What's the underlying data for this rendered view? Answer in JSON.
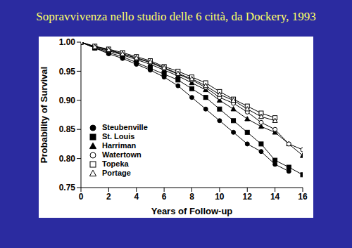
{
  "chart_data": {
    "type": "line",
    "title": "Sopravvivenza nello studio delle 6 città, da Dockery, 1993",
    "x_label": "Years of Follow-up",
    "y_label": "Probability of Survival",
    "x": [
      0,
      1,
      2,
      3,
      4,
      5,
      6,
      7,
      8,
      9,
      10,
      11,
      12,
      13,
      14,
      15,
      16
    ],
    "xlim": [
      0,
      16
    ],
    "xticks": [
      0,
      2,
      4,
      6,
      8,
      10,
      12,
      14,
      16
    ],
    "ylim": [
      0.75,
      1.0
    ],
    "yticks": [
      0.75,
      {
        "value": 0.8,
        "label": "0.80"
      },
      0.85,
      {
        "value": 0.9,
        "label": "0.90"
      },
      0.95,
      {
        "value": 1.0,
        "label": "1.00"
      }
    ],
    "legend": "lower left",
    "grid": false,
    "series": [
      {
        "name": "Steubenville",
        "color": "#000000",
        "marker": "circle",
        "values": [
          1.0,
          0.99,
          0.98,
          0.972,
          0.962,
          0.952,
          0.94,
          0.925,
          0.905,
          0.885,
          0.865,
          0.845,
          0.825,
          0.812,
          0.79,
          0.778,
          null
        ]
      },
      {
        "name": "St. Louis",
        "color": "#000000",
        "marker": "square",
        "values": [
          1.0,
          0.99,
          0.982,
          0.975,
          0.965,
          0.955,
          0.945,
          0.935,
          0.92,
          0.905,
          0.885,
          0.865,
          0.845,
          0.825,
          0.797,
          0.785,
          0.772
        ]
      },
      {
        "name": "Harriman",
        "color": "#000000",
        "marker": "triangle",
        "values": [
          1.0,
          0.99,
          0.985,
          0.978,
          0.97,
          0.962,
          0.952,
          0.942,
          0.93,
          0.918,
          0.9,
          0.885,
          0.868,
          0.855,
          0.845,
          0.825,
          0.805
        ]
      },
      {
        "name": "Watertown",
        "color": "#000000",
        "marker": "open_circle",
        "values": [
          1.0,
          0.992,
          0.986,
          0.98,
          0.972,
          0.965,
          0.955,
          0.945,
          0.935,
          0.922,
          0.905,
          0.895,
          0.88,
          0.862,
          0.85,
          0.825,
          0.815
        ]
      },
      {
        "name": "Topeka",
        "color": "#000000",
        "marker": "open_square",
        "values": [
          1.0,
          0.993,
          0.988,
          0.982,
          0.975,
          0.968,
          0.958,
          0.95,
          0.94,
          0.93,
          0.915,
          0.902,
          0.89,
          0.878,
          0.87,
          null,
          null
        ]
      },
      {
        "name": "Portage",
        "color": "#000000",
        "marker": "open_triangle",
        "values": [
          1.0,
          0.992,
          0.987,
          0.98,
          0.973,
          0.966,
          0.956,
          0.946,
          0.937,
          0.925,
          0.91,
          0.9,
          0.885,
          0.872,
          0.865,
          null,
          null
        ]
      }
    ]
  }
}
